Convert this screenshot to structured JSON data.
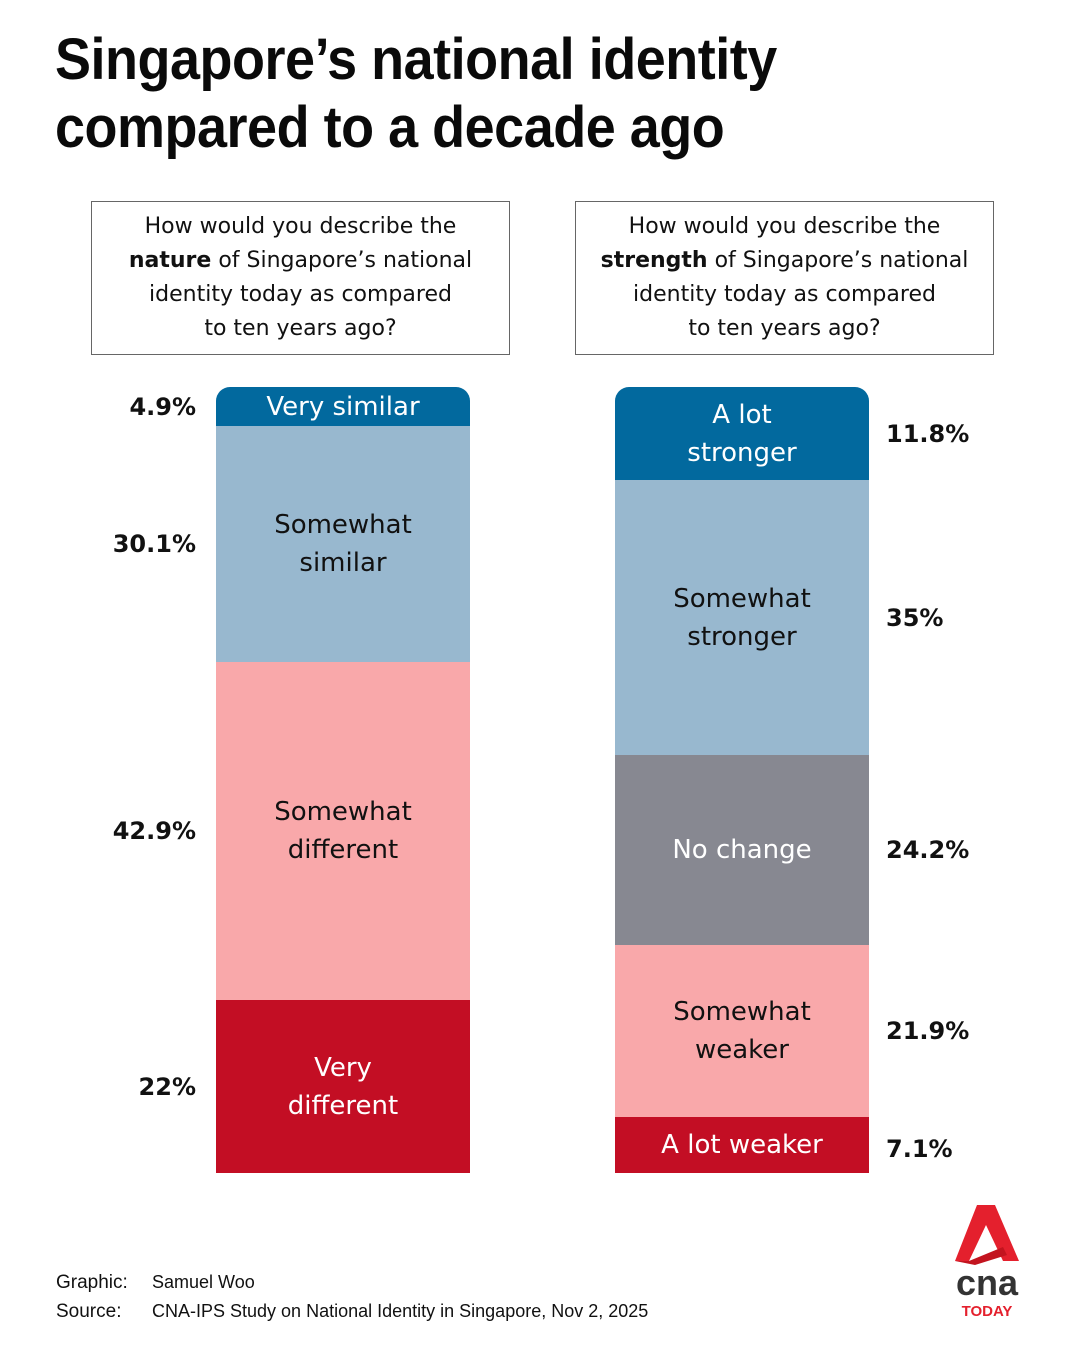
{
  "title": "Singapore’s national identity compared to a decade ago",
  "questions": {
    "left": {
      "pre": "How would you describe the",
      "bold": "nature",
      "post_line": " of Singapore’s national",
      "rest1": "identity today as compared",
      "rest2": "to ten years ago?"
    },
    "right": {
      "pre": "How would you describe the",
      "bold": "strength",
      "post_line": " of Singapore’s national",
      "rest1": "identity today as compared",
      "rest2": "to ten years ago?"
    }
  },
  "chart_data": [
    {
      "type": "bar",
      "stacked": true,
      "orientation": "vertical",
      "title": "How would you describe the nature of Singapore’s national identity today as compared to ten years ago?",
      "unit": "%",
      "categories": [
        "Very similar",
        "Somewhat similar",
        "Somewhat different",
        "Very different"
      ],
      "values": [
        4.9,
        30.1,
        42.9,
        22
      ],
      "labels": [
        "4.9%",
        "30.1%",
        "42.9%",
        "22%"
      ],
      "colors": [
        "#02699e",
        "#98b8cf",
        "#f9a8aa",
        "#c30e24"
      ],
      "text_colors": [
        "#ffffff",
        "#111111",
        "#111111",
        "#ffffff"
      ],
      "value_label_side": "left"
    },
    {
      "type": "bar",
      "stacked": true,
      "orientation": "vertical",
      "title": "How would you describe the strength of Singapore’s national identity today as compared to ten years ago?",
      "unit": "%",
      "categories": [
        "A lot stronger",
        "Somewhat stronger",
        "No change",
        "Somewhat weaker",
        "A lot weaker"
      ],
      "values": [
        11.8,
        35,
        24.2,
        21.9,
        7.1
      ],
      "labels": [
        "11.8%",
        "35%",
        "24.2%",
        "21.9%",
        "7.1%"
      ],
      "colors": [
        "#02699e",
        "#98b8cf",
        "#878891",
        "#f9a8aa",
        "#c30e24"
      ],
      "text_colors": [
        "#ffffff",
        "#111111",
        "#ffffff",
        "#111111",
        "#ffffff"
      ],
      "value_label_side": "right"
    }
  ],
  "footer": {
    "graphic_label": "Graphic:",
    "graphic_value": "Samuel Woo",
    "source_label": "Source:",
    "source_value": "CNA-IPS Study on National Identity in Singapore, Nov 2, 2025"
  },
  "logo": {
    "name": "cna",
    "sub": "TODAY",
    "accent": "#e4202d",
    "dark": "#333333"
  }
}
